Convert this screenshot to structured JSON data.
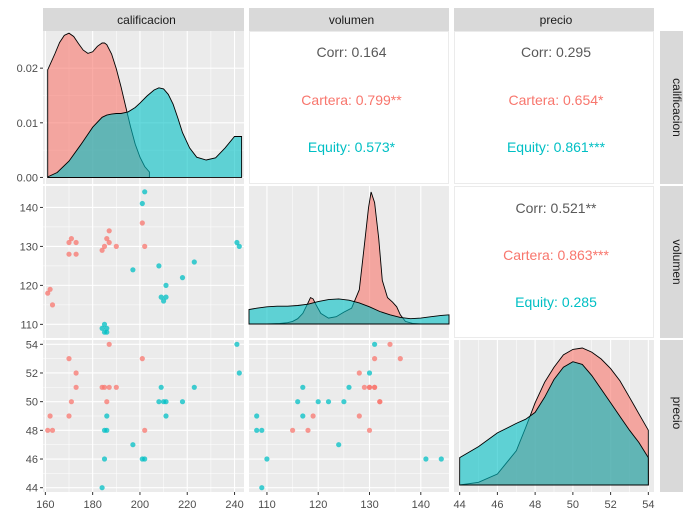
{
  "colors": {
    "cartera": "#F8766D",
    "equity": "#00BFC4",
    "panel_bg": "#EBEBEB",
    "strip_bg": "#D9D9D9",
    "grid_major": "#FFFFFF",
    "corr_total": "#595959"
  },
  "chart_data": {
    "type": "scatter",
    "variables": [
      "calificacion",
      "volumen",
      "precio"
    ],
    "groups": [
      "Cartera",
      "Equity"
    ],
    "axes": {
      "calificacion": {
        "lim": [
          159,
          244
        ],
        "ticks": [
          160,
          180,
          200,
          220,
          240
        ]
      },
      "volumen": {
        "lim": [
          106.5,
          145.5
        ],
        "ticks": [
          110,
          120,
          130,
          140
        ]
      },
      "precio": {
        "lim": [
          43.7,
          54.3
        ],
        "ticks": [
          44,
          46,
          48,
          50,
          52,
          54
        ]
      },
      "density_calificacion": {
        "lim": [
          -0.0012,
          0.0268
        ],
        "ticks": [
          0.0,
          0.01,
          0.02
        ],
        "tick_labels": [
          "0.00",
          "0.01",
          "0.02"
        ]
      }
    },
    "points": {
      "Cartera": {
        "calificacion": [
          161,
          162,
          163,
          170,
          170,
          171,
          173,
          173,
          184,
          185,
          186,
          187,
          187,
          190,
          201,
          202
        ],
        "volumen": [
          118,
          119,
          115,
          131,
          128,
          132,
          128,
          131,
          129,
          130,
          132,
          134,
          131,
          130,
          136,
          130
        ],
        "precio": [
          48,
          49,
          48,
          53,
          49,
          50,
          52,
          51,
          51,
          51,
          50,
          54,
          51,
          51,
          53,
          48
        ]
      },
      "Equity": {
        "calificacion": [
          184,
          185,
          185,
          186,
          186,
          197,
          201,
          202,
          208,
          209,
          210,
          211,
          211,
          218,
          223,
          241,
          242
        ],
        "volumen": [
          109,
          110,
          108,
          108,
          109,
          124,
          141,
          144,
          125,
          117,
          116,
          117,
          120,
          122,
          126,
          131,
          130
        ],
        "precio": [
          44,
          46,
          48,
          49,
          48,
          47,
          46,
          46,
          50,
          51,
          50,
          49,
          50,
          50,
          51,
          54,
          52
        ]
      }
    },
    "densities": {
      "calificacion": {
        "Cartera": {
          "x": [
            161,
            164,
            166,
            168,
            170,
            172,
            174,
            176,
            178,
            180,
            182,
            184,
            185,
            186,
            188,
            190,
            192,
            194,
            196,
            198,
            200,
            202,
            204
          ],
          "y": [
            0.0197,
            0.0226,
            0.0247,
            0.026,
            0.0264,
            0.0258,
            0.0245,
            0.0233,
            0.0227,
            0.023,
            0.024,
            0.0246,
            0.0246,
            0.0243,
            0.0226,
            0.0199,
            0.0166,
            0.0129,
            0.0093,
            0.0061,
            0.0037,
            0.002,
            0.001
          ]
        },
        "Equity": {
          "x": [
            161,
            165,
            170,
            175,
            180,
            184,
            186,
            188,
            190,
            192,
            195,
            198,
            200,
            203,
            206,
            208,
            210,
            212,
            214,
            216,
            218,
            221,
            224,
            228,
            232,
            236,
            240,
            243
          ],
          "y": [
            0.0001,
            0.0009,
            0.003,
            0.006,
            0.0092,
            0.011,
            0.0114,
            0.0116,
            0.0117,
            0.0117,
            0.012,
            0.0128,
            0.0136,
            0.0149,
            0.016,
            0.0164,
            0.0162,
            0.0152,
            0.0134,
            0.0109,
            0.0082,
            0.0054,
            0.0037,
            0.0032,
            0.0036,
            0.0054,
            0.0075,
            0.0075
          ]
        }
      },
      "volumen": {
        "Cartera": [
          [
            106.5,
            0.0
          ],
          [
            110.0,
            0.001
          ],
          [
            112.5,
            0.004
          ],
          [
            114.0,
            0.01
          ],
          [
            115.0,
            0.02
          ],
          [
            116.0,
            0.04
          ],
          [
            117.0,
            0.08
          ],
          [
            118.0,
            0.16
          ],
          [
            118.5,
            0.2
          ],
          [
            119.0,
            0.19
          ],
          [
            119.5,
            0.15
          ],
          [
            120.5,
            0.08
          ],
          [
            122.0,
            0.045
          ],
          [
            123.5,
            0.055
          ],
          [
            125.0,
            0.09
          ],
          [
            126.5,
            0.12
          ],
          [
            128.0,
            0.26
          ],
          [
            129.0,
            0.6
          ],
          [
            129.8,
            0.88
          ],
          [
            130.3,
            1.0
          ],
          [
            131.0,
            0.92
          ],
          [
            131.8,
            0.65
          ],
          [
            132.5,
            0.33
          ],
          [
            133.5,
            0.2
          ],
          [
            134.5,
            0.165
          ],
          [
            135.3,
            0.13
          ],
          [
            136.0,
            0.07
          ],
          [
            137.0,
            0.02
          ],
          [
            138.5,
            0.004
          ],
          [
            140.0,
            0.0
          ]
        ],
        "Equity": [
          [
            106.5,
            0.11
          ],
          [
            108.0,
            0.12
          ],
          [
            110.0,
            0.13
          ],
          [
            112.0,
            0.135
          ],
          [
            114.0,
            0.135
          ],
          [
            116.0,
            0.14
          ],
          [
            118.0,
            0.15
          ],
          [
            120.0,
            0.17
          ],
          [
            122.0,
            0.185
          ],
          [
            124.0,
            0.19
          ],
          [
            126.0,
            0.18
          ],
          [
            128.0,
            0.16
          ],
          [
            130.0,
            0.13
          ],
          [
            132.0,
            0.095
          ],
          [
            134.0,
            0.07
          ],
          [
            136.0,
            0.05
          ],
          [
            138.0,
            0.04
          ],
          [
            140.0,
            0.045
          ],
          [
            142.0,
            0.055
          ],
          [
            144.0,
            0.065
          ],
          [
            145.5,
            0.07
          ]
        ]
      },
      "precio": {
        "Cartera": {
          "x": [
            44.0,
            45.0,
            46.0,
            47.0,
            47.5,
            48.0,
            48.5,
            49.0,
            49.5,
            50.0,
            50.5,
            51.0,
            51.5,
            52.0,
            52.5,
            53.0,
            53.5,
            54.0
          ],
          "y": [
            0.0,
            0.02,
            0.08,
            0.25,
            0.42,
            0.6,
            0.75,
            0.86,
            0.95,
            0.99,
            1.0,
            0.97,
            0.92,
            0.85,
            0.76,
            0.64,
            0.52,
            0.4
          ]
        },
        "Equity": {
          "x": [
            44.0,
            45.0,
            46.0,
            47.0,
            47.5,
            48.0,
            48.5,
            49.0,
            49.5,
            50.0,
            50.5,
            51.0,
            51.5,
            52.0,
            52.5,
            53.0,
            53.5,
            54.0
          ],
          "y": [
            0.2,
            0.28,
            0.38,
            0.45,
            0.48,
            0.53,
            0.64,
            0.77,
            0.86,
            0.9,
            0.88,
            0.8,
            0.7,
            0.6,
            0.5,
            0.4,
            0.31,
            0.2
          ]
        }
      }
    },
    "correlations": {
      "calificacion_volumen": {
        "corr": "Corr: 0.164",
        "cartera": "Cartera: 0.799**",
        "equity": "Equity: 0.573*"
      },
      "calificacion_precio": {
        "corr": "Corr: 0.295",
        "cartera": "Cartera: 0.654*",
        "equity": "Equity: 0.861***"
      },
      "volumen_precio": {
        "corr": "Corr: 0.521**",
        "cartera": "Cartera: 0.863***",
        "equity": "Equity: 0.285"
      }
    }
  }
}
